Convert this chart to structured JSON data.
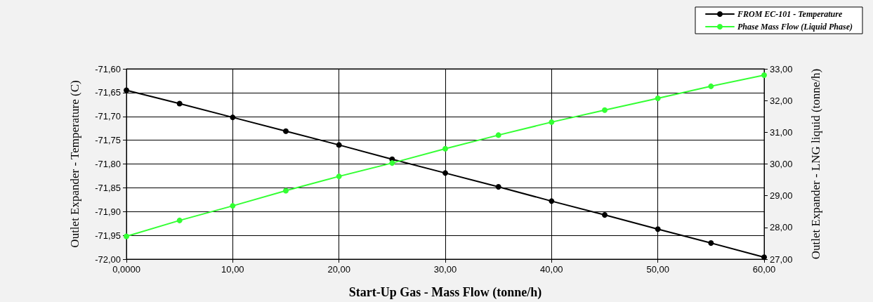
{
  "chart_data": {
    "type": "line",
    "xlabel": "Start-Up Gas - Mass Flow (tonne/h)",
    "ylabel": "Outlet Expander - Temperature (C)",
    "y2label": "Outlet Expander - LNG liquid (tonne/h)",
    "x": [
      0,
      5,
      10,
      15,
      20,
      25,
      30,
      35,
      40,
      45,
      50,
      55,
      60
    ],
    "series": [
      {
        "name": "FROM EC-101 - Temperature",
        "color": "#000000",
        "values": [
          -71.645,
          -71.673,
          -71.702,
          -71.731,
          -71.76,
          -71.79,
          -71.819,
          -71.848,
          -71.878,
          -71.907,
          -71.937,
          -71.966,
          -71.996
        ]
      },
      {
        "name": "Phase Mass Flow (Liquid Phase)",
        "color": "#33ff33",
        "axis": "y2",
        "values": [
          27.72,
          28.22,
          28.68,
          29.16,
          29.61,
          30.03,
          30.48,
          30.91,
          31.32,
          31.7,
          32.07,
          32.45,
          32.8
        ]
      }
    ],
    "xlim": [
      0,
      60
    ],
    "xticks": [
      {
        "value": 0,
        "label": "0,0000"
      },
      {
        "value": 10,
        "label": "10,00"
      },
      {
        "value": 20,
        "label": "20,00"
      },
      {
        "value": 30,
        "label": "30,00"
      },
      {
        "value": 40,
        "label": "40,00"
      },
      {
        "value": 50,
        "label": "50,00"
      },
      {
        "value": 60,
        "label": "60,00"
      }
    ],
    "ylim": [
      -72,
      -71.6
    ],
    "yticks": [
      {
        "value": -72,
        "label": "-72,00"
      },
      {
        "value": -71.95,
        "label": "-71,95"
      },
      {
        "value": -71.9,
        "label": "-71,90"
      },
      {
        "value": -71.85,
        "label": "-71,85"
      },
      {
        "value": -71.8,
        "label": "-71,80"
      },
      {
        "value": -71.75,
        "label": "-71,75"
      },
      {
        "value": -71.7,
        "label": "-71,70"
      },
      {
        "value": -71.65,
        "label": "-71,65"
      },
      {
        "value": -71.6,
        "label": "-71,60"
      }
    ],
    "y2lim": [
      27,
      33
    ],
    "y2ticks": [
      {
        "value": 27,
        "label": "27,00"
      },
      {
        "value": 28,
        "label": "28,00"
      },
      {
        "value": 29,
        "label": "29,00"
      },
      {
        "value": 30,
        "label": "30,00"
      },
      {
        "value": 31,
        "label": "31,00"
      },
      {
        "value": 32,
        "label": "32,00"
      },
      {
        "value": 33,
        "label": "33,00"
      }
    ],
    "grid": true,
    "legend": "top right",
    "marker": "circle",
    "line_style": "solid"
  }
}
